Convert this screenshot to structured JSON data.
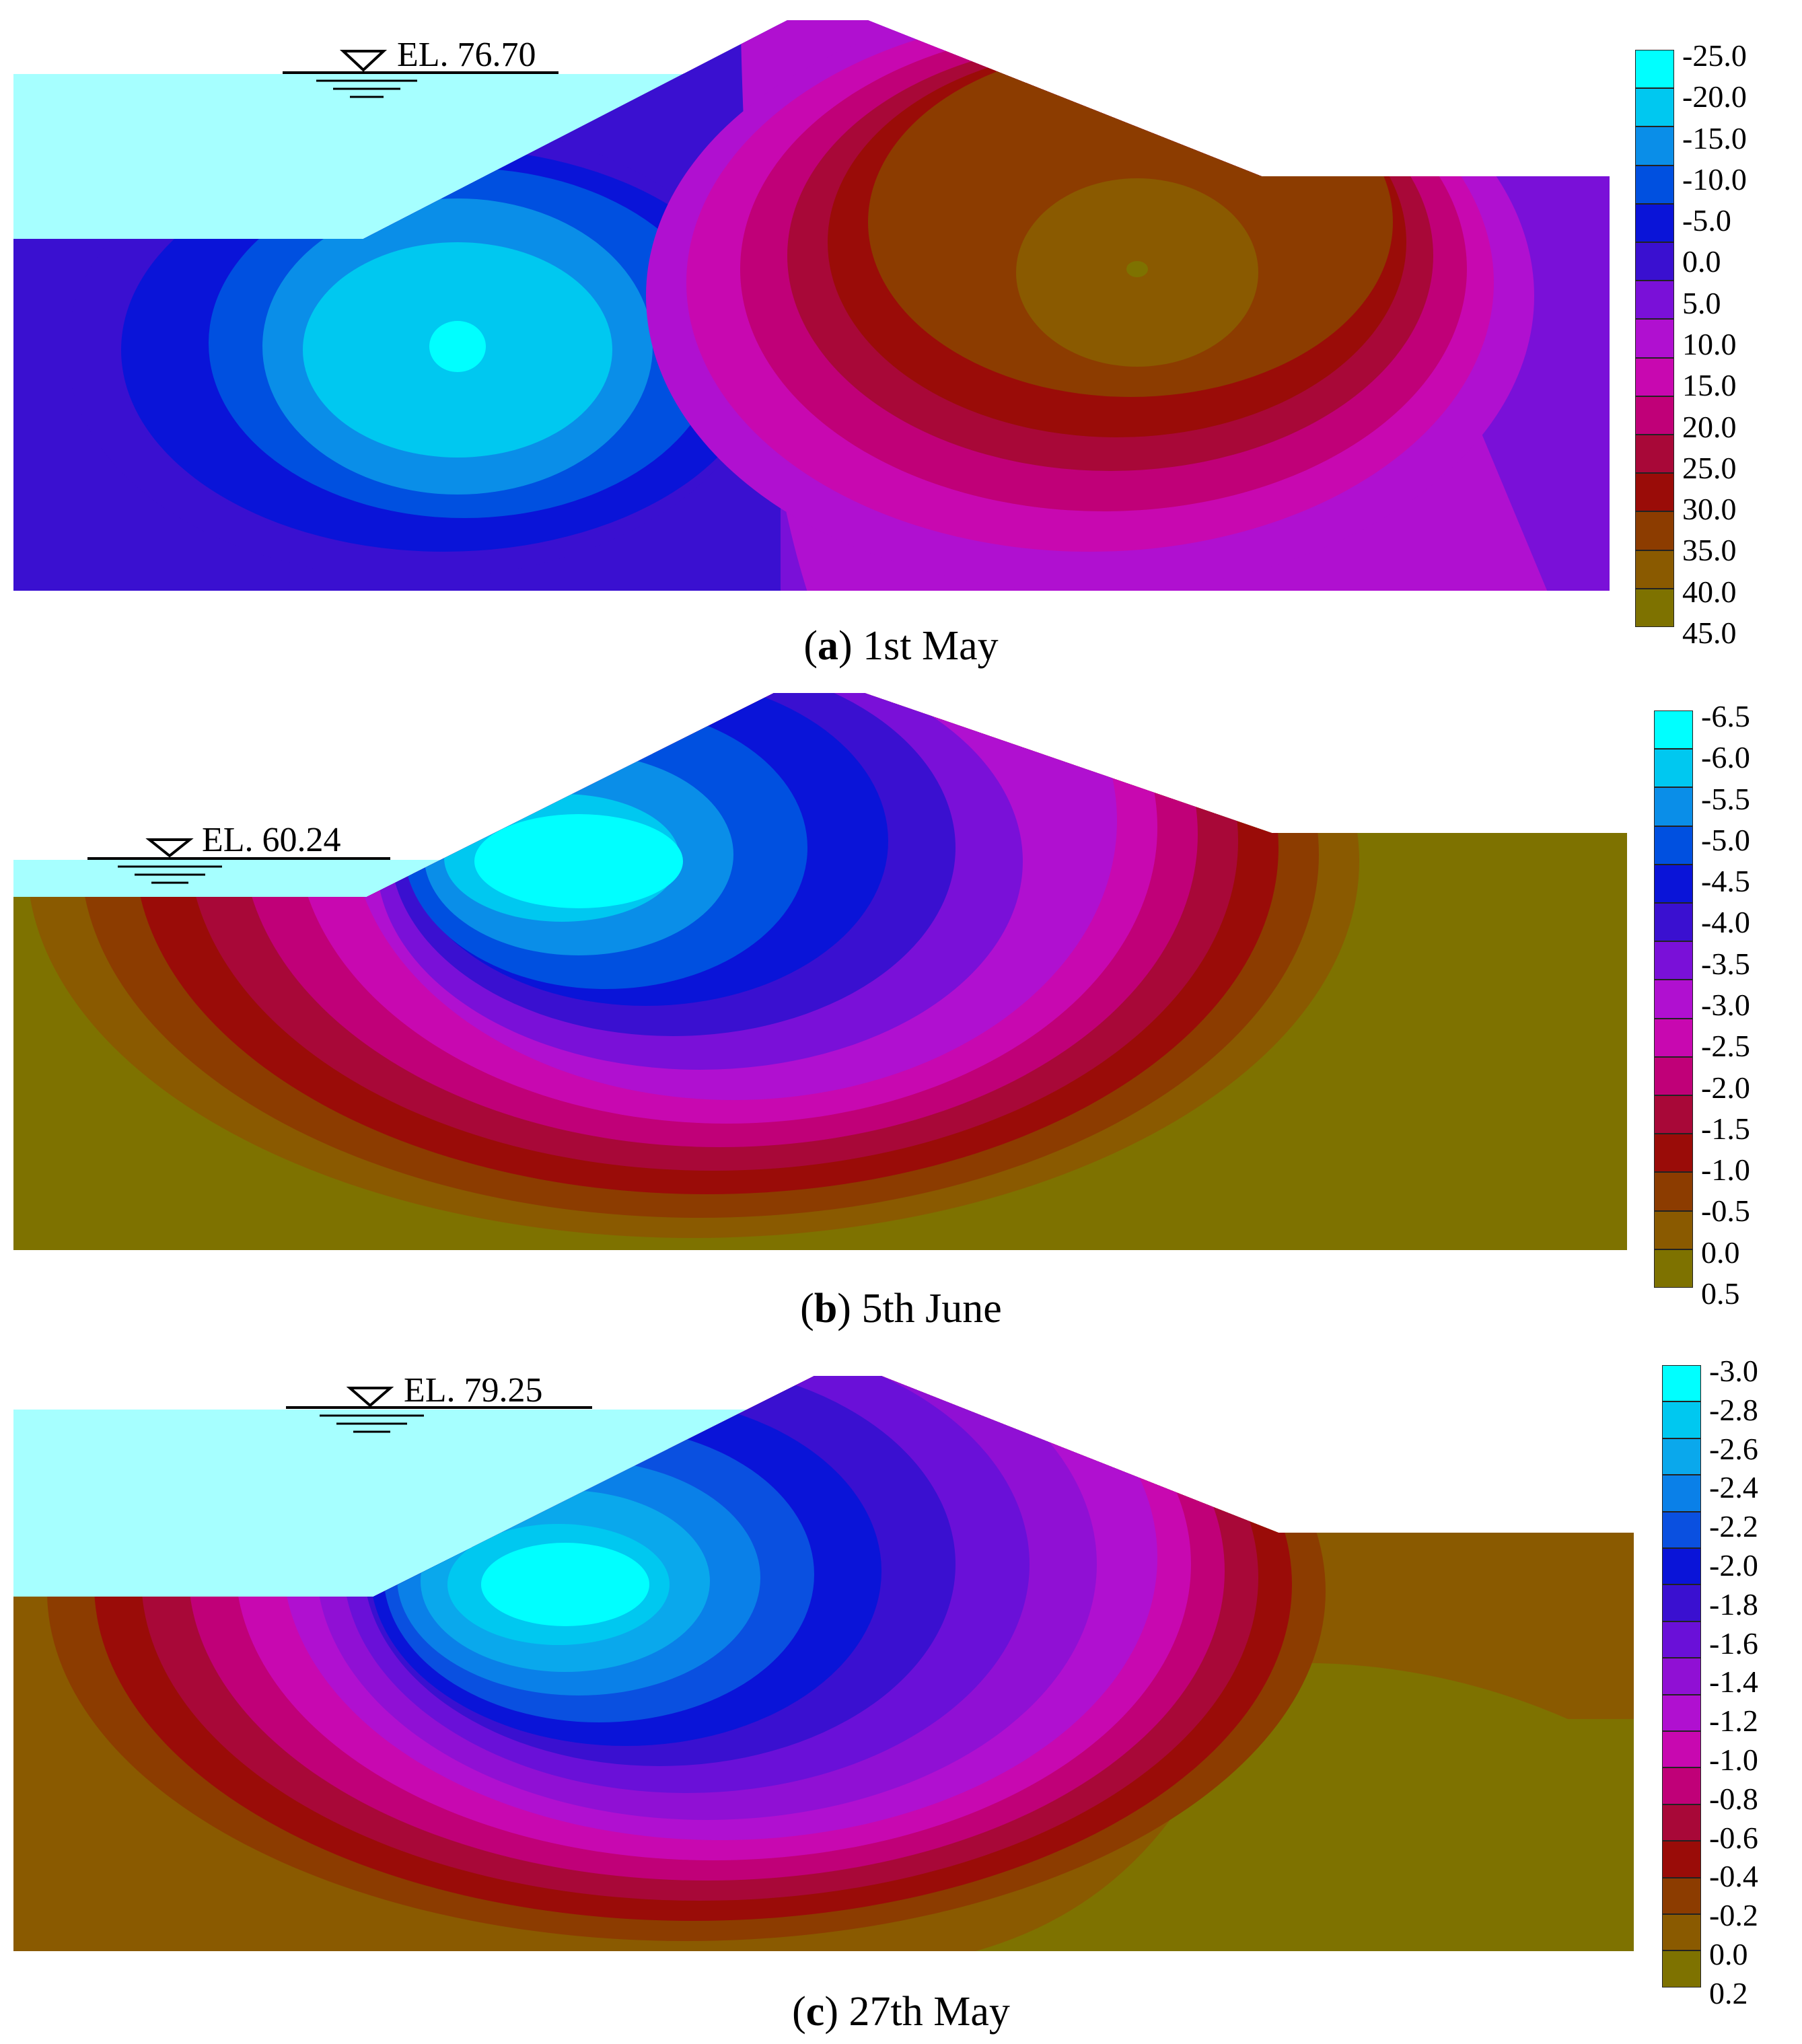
{
  "panels": [
    {
      "letter": "a",
      "caption": "1st May",
      "water_level": "EL. 76.70",
      "legend_levels": [
        "-25.0",
        "-20.0",
        "-15.0",
        "-10.0",
        "-5.0",
        "0.0",
        "5.0",
        "10.0",
        "15.0",
        "20.0",
        "25.0",
        "30.0",
        "35.0",
        "40.0",
        "45.0"
      ],
      "legend_colors": [
        "#00ffff",
        "#00c8f0",
        "#0a8ee8",
        "#0050e0",
        "#0a14d8",
        "#3a10d0",
        "#7a10d8",
        "#b010d0",
        "#c808b0",
        "#c00078",
        "#a80838",
        "#9a0c08",
        "#8c3c00",
        "#8a5a00",
        "#7e7200"
      ]
    },
    {
      "letter": "b",
      "caption": "5th June",
      "water_level": "EL. 60.24",
      "legend_levels": [
        "-6.5",
        "-6.0",
        "-5.5",
        "-5.0",
        "-4.5",
        "-4.0",
        "-3.5",
        "-3.0",
        "-2.5",
        "-2.0",
        "-1.5",
        "-1.0",
        "-0.5",
        "0.0",
        "0.5"
      ],
      "legend_colors": [
        "#00ffff",
        "#00c8f0",
        "#0a8ee8",
        "#0050e0",
        "#0a14d8",
        "#3a10d0",
        "#7a10d8",
        "#b010d0",
        "#c808b0",
        "#c00078",
        "#a80838",
        "#9a0c08",
        "#8c3c00",
        "#8a5a00",
        "#7e7200"
      ]
    },
    {
      "letter": "c",
      "caption": "27th May",
      "water_level": "EL. 79.25",
      "legend_levels": [
        "-3.0",
        "-2.8",
        "-2.6",
        "-2.4",
        "-2.2",
        "-2.0",
        "-1.8",
        "-1.6",
        "-1.4",
        "-1.2",
        "-1.0",
        "-0.8",
        "-0.6",
        "-0.4",
        "-0.2",
        "0.0",
        "0.2"
      ],
      "legend_colors": [
        "#00ffff",
        "#00c8f0",
        "#0aa8ec",
        "#0a80e8",
        "#0a50e0",
        "#0a14d8",
        "#3a10d0",
        "#6a10d8",
        "#9010d4",
        "#b010d0",
        "#c808b0",
        "#c00078",
        "#a80838",
        "#9a0c08",
        "#8c3c00",
        "#8a5a00",
        "#7e7200"
      ]
    }
  ]
}
